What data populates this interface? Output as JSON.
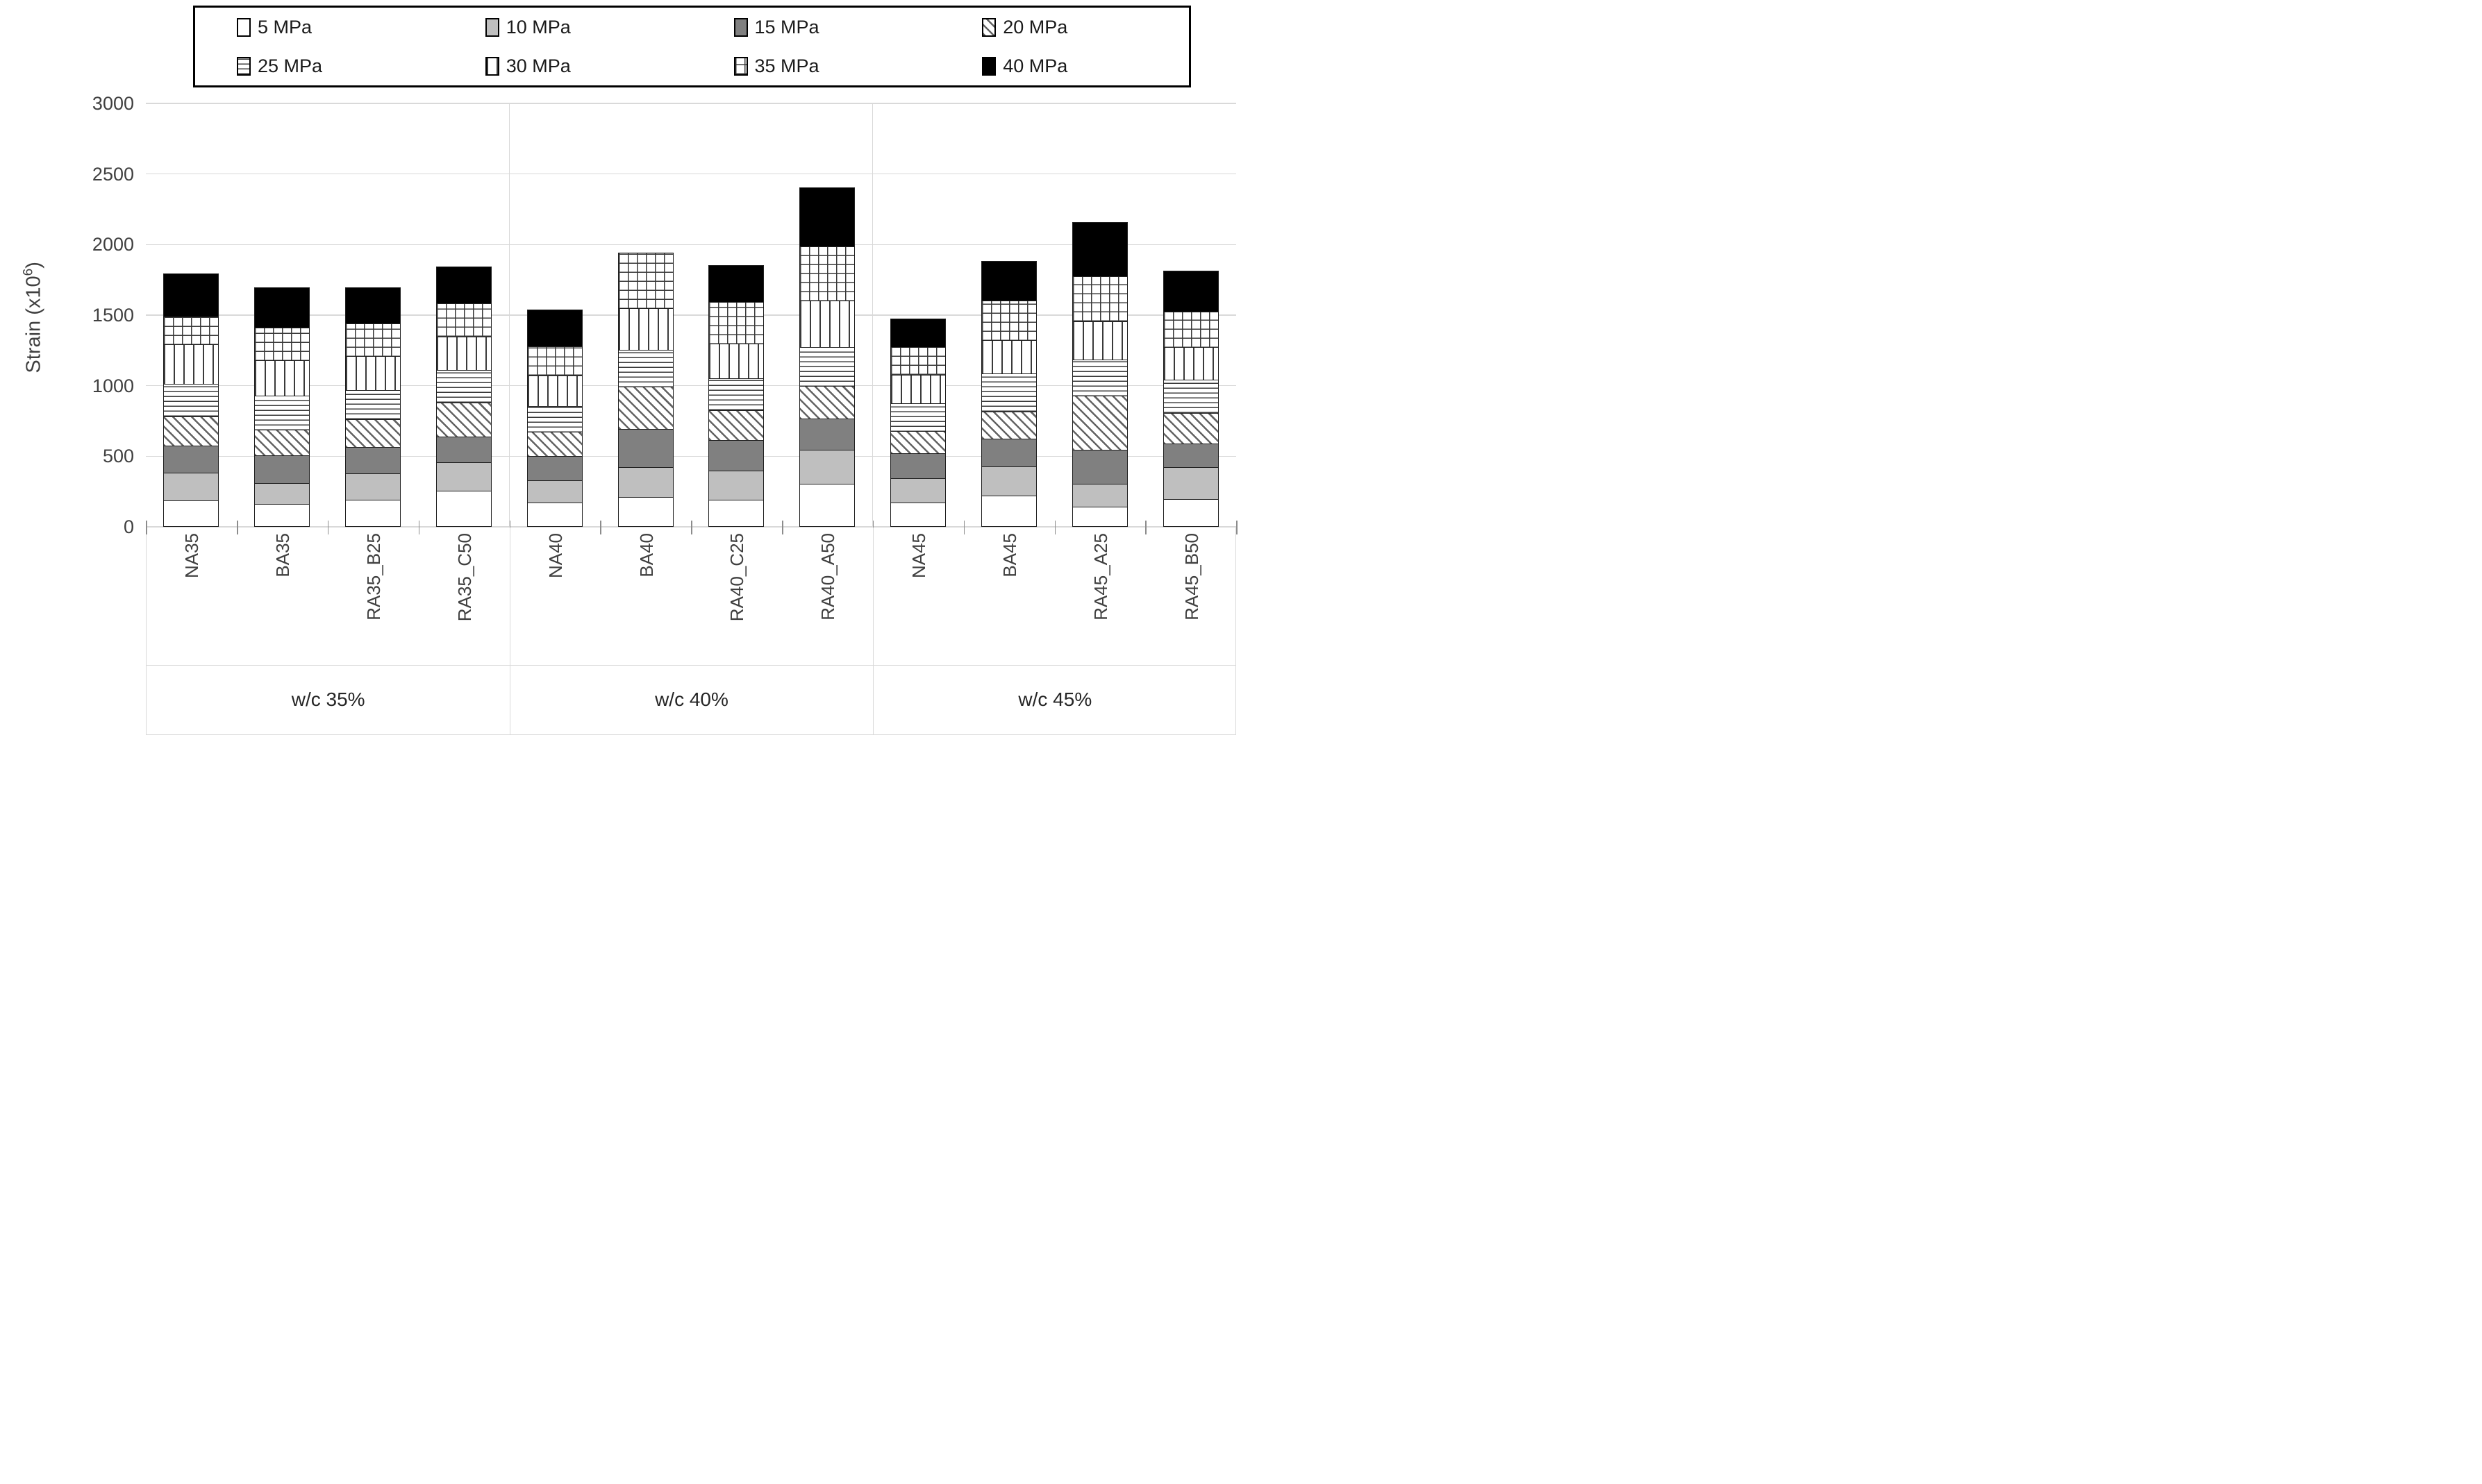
{
  "y_axis": {
    "title_prefix": "Strain (x10",
    "title_sup": "6",
    "title_suffix": ")"
  },
  "chart_data": {
    "type": "bar",
    "stacked": true,
    "title": "",
    "xlabel": "",
    "ylabel": "Strain (x10^6)",
    "ylim": [
      0,
      3000
    ],
    "yticks": [
      0,
      500,
      1000,
      1500,
      2000,
      2500,
      3000
    ],
    "grid": true,
    "legend_position": "top",
    "categories": [
      "NA35",
      "BA35",
      "RA35_B25",
      "RA35_C50",
      "NA40",
      "BA40",
      "RA40_C25",
      "RA40_A50",
      "NA45",
      "BA45",
      "RA45_A25",
      "RA45_B50"
    ],
    "groups": [
      {
        "label": "w/c 35%",
        "categories": [
          "NA35",
          "BA35",
          "RA35_B25",
          "RA35_C50"
        ]
      },
      {
        "label": "w/c 40%",
        "categories": [
          "NA40",
          "BA40",
          "RA40_C25",
          "RA40_A50"
        ]
      },
      {
        "label": "w/c 45%",
        "categories": [
          "NA45",
          "BA45",
          "RA45_A25",
          "RA45_B50"
        ]
      }
    ],
    "series": [
      {
        "name": "5 MPa",
        "swatch": "white",
        "values": [
          185,
          160,
          190,
          255,
          170,
          210,
          190,
          305,
          170,
          220,
          145,
          195
        ]
      },
      {
        "name": "10 MPa",
        "swatch": "light-gray",
        "values": [
          205,
          155,
          195,
          210,
          165,
          220,
          215,
          250,
          180,
          215,
          165,
          235
        ]
      },
      {
        "name": "15 MPa",
        "swatch": "dark-gray",
        "values": [
          200,
          205,
          195,
          190,
          180,
          280,
          225,
          225,
          185,
          205,
          250,
          175
        ]
      },
      {
        "name": "20 MPa",
        "swatch": "diagonal",
        "values": [
          215,
          190,
          205,
          250,
          180,
          305,
          220,
          240,
          165,
          200,
          390,
          225
        ]
      },
      {
        "name": "25 MPa",
        "swatch": "horizontal-lines",
        "values": [
          240,
          250,
          215,
          235,
          190,
          270,
          230,
          285,
          205,
          275,
          265,
          240
        ]
      },
      {
        "name": "30 MPa",
        "swatch": "vertical-lines",
        "values": [
          285,
          255,
          245,
          245,
          225,
          300,
          255,
          335,
          210,
          245,
          280,
          240
        ]
      },
      {
        "name": "35 MPa",
        "swatch": "grid",
        "values": [
          205,
          240,
          240,
          245,
          215,
          400,
          305,
          390,
          205,
          290,
          325,
          260
        ]
      },
      {
        "name": "40 MPa",
        "swatch": "black",
        "values": [
          310,
          295,
          265,
          265,
          265,
          0,
          265,
          425,
          205,
          285,
          390,
          295
        ]
      }
    ],
    "bar_totals": [
      1845,
      1750,
      1750,
      1895,
      1590,
      1985,
      1905,
      2455,
      1525,
      1935,
      2210,
      1865
    ]
  },
  "colors": {
    "gridline": "#d9d9d9",
    "bar_border": "#1f1f1f",
    "light_gray_fill": "#bfbfbf",
    "dark_gray_fill": "#808080",
    "black_fill": "#000000",
    "axis_text": "#404040"
  }
}
